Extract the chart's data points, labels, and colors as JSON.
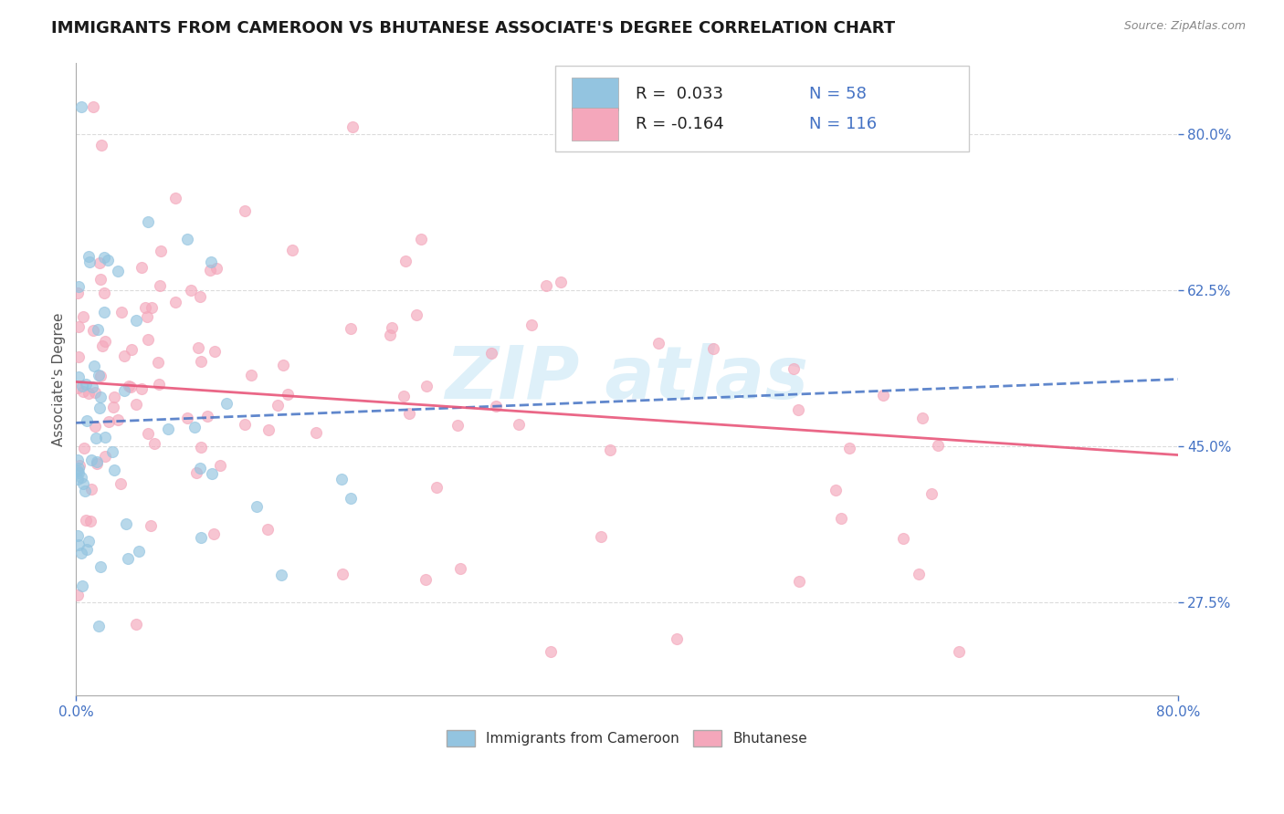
{
  "title": "IMMIGRANTS FROM CAMEROON VS BHUTANESE ASSOCIATE'S DEGREE CORRELATION CHART",
  "source_text": "Source: ZipAtlas.com",
  "ylabel": "Associate's Degree",
  "xlim": [
    0.0,
    0.8
  ],
  "ylim": [
    0.17,
    0.88
  ],
  "xtick_labels": [
    "0.0%",
    "80.0%"
  ],
  "xtick_positions": [
    0.0,
    0.8
  ],
  "ytick_labels": [
    "27.5%",
    "45.0%",
    "62.5%",
    "80.0%"
  ],
  "ytick_positions": [
    0.275,
    0.45,
    0.625,
    0.8
  ],
  "blue_color": "#93c4e0",
  "pink_color": "#f4a7bb",
  "blue_label": "Immigrants from Cameroon",
  "pink_label": "Bhutanese",
  "R_blue": 0.033,
  "N_blue": 58,
  "R_pink": -0.164,
  "N_pink": 116,
  "blue_trend_color": "#4472c4",
  "pink_trend_color": "#e8567a",
  "watermark_color": "#c8e6f5",
  "title_fontsize": 13,
  "axis_label_fontsize": 11,
  "tick_fontsize": 11,
  "legend_fontsize": 13,
  "background_color": "#ffffff",
  "grid_color": "#cccccc",
  "axis_color": "#aaaaaa",
  "tick_color": "#4472c4",
  "legend_text_dark": "#222222",
  "legend_text_blue": "#4472c4"
}
